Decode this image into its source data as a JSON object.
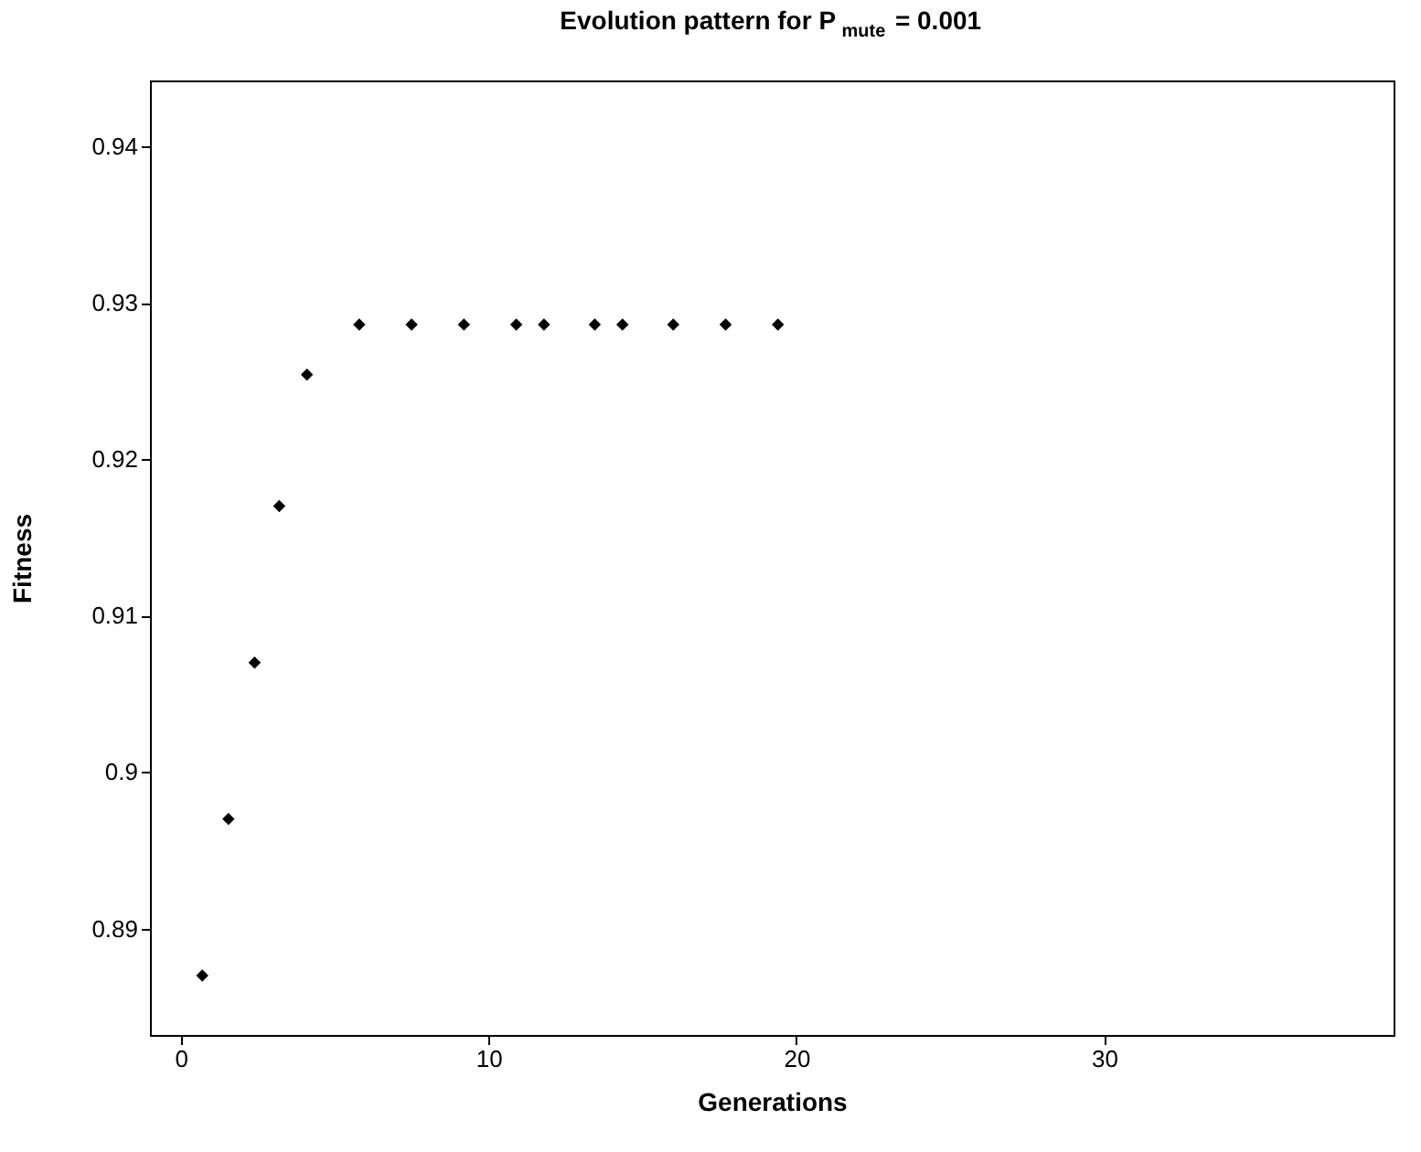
{
  "chart_data": {
    "type": "scatter",
    "title": "Evolution pattern for P$_{mute}$ = 0.001",
    "xlabel": "Generations",
    "ylabel": "Fitness",
    "x": [
      0.7,
      1.55,
      2.4,
      3.2,
      4.1,
      5.8,
      7.5,
      9.2,
      10.9,
      11.8,
      13.45,
      14.35,
      16.0,
      17.7,
      19.4
    ],
    "series": [
      {
        "color": "#000000",
        "values": [
          0.887,
          0.897,
          0.907,
          0.917,
          0.9254,
          0.9286,
          0.9286,
          0.9286,
          0.9286,
          0.9286,
          0.9286,
          0.9286,
          0.9286,
          0.9286,
          0.9286
        ]
      }
    ],
    "xlim": [
      -1,
      39.4
    ],
    "xticks": [
      0,
      10,
      20,
      30
    ],
    "ylim": [
      0.8832,
      0.9442
    ],
    "yticks": [
      0.89,
      0.9,
      0.91,
      0.92,
      0.93,
      0.94
    ],
    "marker": "diamond",
    "grid": false,
    "legend": false
  }
}
